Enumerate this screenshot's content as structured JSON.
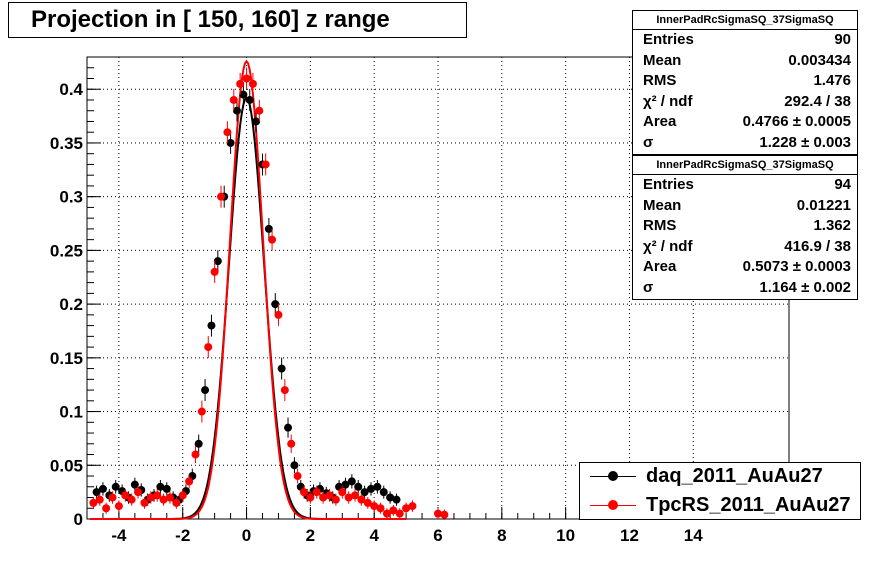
{
  "title": "Projection in [ 150, 160] z range",
  "stats": [
    {
      "header": "InnerPadRcSigmaSQ_37SigmaSQ",
      "rows": [
        {
          "label": "Entries",
          "value": "90"
        },
        {
          "label": "Mean",
          "value": "0.003434"
        },
        {
          "label": "RMS",
          "value": "1.476"
        },
        {
          "label": "χ² / ndf",
          "value": "292.4 / 38"
        },
        {
          "label": "Area",
          "value": "0.4766 ± 0.0005"
        },
        {
          "label": "σ",
          "value": "1.228 ± 0.003"
        }
      ]
    },
    {
      "header": "InnerPadRcSigmaSQ_37SigmaSQ",
      "rows": [
        {
          "label": "Entries",
          "value": "94"
        },
        {
          "label": "Mean",
          "value": "0.01221"
        },
        {
          "label": "RMS",
          "value": "1.362"
        },
        {
          "label": "χ² / ndf",
          "value": "416.9 / 38"
        },
        {
          "label": "Area",
          "value": "0.5073 ± 0.0003"
        },
        {
          "label": "σ",
          "value": "1.164 ± 0.002"
        }
      ]
    }
  ],
  "legend": [
    {
      "label": "daq_2011_AuAu27",
      "color": "#000000"
    },
    {
      "label": "TpcRS_2011_AuAu27",
      "color": "#ff0000"
    }
  ],
  "chart_data": {
    "type": "scatter",
    "title": "Projection in [ 150, 160] z range",
    "xlim": [
      -5,
      17
    ],
    "ylim": [
      0,
      0.43
    ],
    "x_ticks": [
      "-4",
      "-2",
      "0",
      "2",
      "4",
      "6",
      "8",
      "10",
      "12",
      "14"
    ],
    "y_ticks": [
      "0",
      "0.05",
      "0.1",
      "0.15",
      "0.2",
      "0.25",
      "0.3",
      "0.35",
      "0.4"
    ],
    "grid": true,
    "series": [
      {
        "name": "daq_2011_AuAu27",
        "color": "#000000",
        "x": [
          -4.7,
          -4.5,
          -4.3,
          -4.1,
          -3.9,
          -3.7,
          -3.5,
          -3.3,
          -3.1,
          -2.9,
          -2.7,
          -2.5,
          -2.3,
          -2.1,
          -1.9,
          -1.7,
          -1.5,
          -1.3,
          -1.1,
          -0.9,
          -0.7,
          -0.5,
          -0.3,
          -0.1,
          0.1,
          0.3,
          0.5,
          0.7,
          0.9,
          1.1,
          1.3,
          1.5,
          1.7,
          1.9,
          2.1,
          2.3,
          2.5,
          2.7,
          2.9,
          3.1,
          3.3,
          3.5,
          3.7,
          3.9,
          4.1,
          4.3,
          4.5,
          4.7
        ],
        "y": [
          0.025,
          0.028,
          0.022,
          0.03,
          0.026,
          0.02,
          0.032,
          0.027,
          0.018,
          0.022,
          0.03,
          0.028,
          0.02,
          0.018,
          0.026,
          0.04,
          0.07,
          0.12,
          0.18,
          0.24,
          0.3,
          0.35,
          0.38,
          0.395,
          0.39,
          0.37,
          0.33,
          0.27,
          0.2,
          0.14,
          0.085,
          0.05,
          0.03,
          0.022,
          0.026,
          0.028,
          0.024,
          0.02,
          0.03,
          0.032,
          0.035,
          0.03,
          0.025,
          0.028,
          0.03,
          0.025,
          0.02,
          0.018
        ]
      },
      {
        "name": "TpcRS_2011_AuAu27",
        "color": "#ff0000",
        "x": [
          -4.8,
          -4.6,
          -4.4,
          -4.2,
          -4.0,
          -3.8,
          -3.6,
          -3.4,
          -3.2,
          -3.0,
          -2.8,
          -2.6,
          -2.4,
          -2.2,
          -2.0,
          -1.8,
          -1.6,
          -1.4,
          -1.2,
          -1.0,
          -0.8,
          -0.6,
          -0.4,
          -0.2,
          0.0,
          0.2,
          0.4,
          0.6,
          0.8,
          1.0,
          1.2,
          1.4,
          1.6,
          1.8,
          2.0,
          2.2,
          2.4,
          2.6,
          2.8,
          3.0,
          3.2,
          3.4,
          3.6,
          3.8,
          4.0,
          4.2,
          4.4,
          4.6,
          4.8,
          5.0,
          5.2,
          6.0,
          6.2
        ],
        "y": [
          0.015,
          0.018,
          0.01,
          0.02,
          0.012,
          0.022,
          0.018,
          0.025,
          0.015,
          0.02,
          0.022,
          0.018,
          0.02,
          0.015,
          0.022,
          0.035,
          0.06,
          0.1,
          0.16,
          0.23,
          0.3,
          0.36,
          0.39,
          0.405,
          0.41,
          0.405,
          0.38,
          0.33,
          0.26,
          0.19,
          0.12,
          0.07,
          0.04,
          0.025,
          0.02,
          0.025,
          0.02,
          0.022,
          0.018,
          0.025,
          0.02,
          0.022,
          0.018,
          0.015,
          0.012,
          0.01,
          0.005,
          0.008,
          0.005,
          0.01,
          0.012,
          0.005,
          0.004
        ]
      }
    ],
    "fits": [
      {
        "series": "daq_2011_AuAu27",
        "color": "#000000",
        "amplitude": 0.392,
        "sigma": 0.55
      },
      {
        "series": "TpcRS_2011_AuAu27",
        "color": "#ff0000",
        "amplitude": 0.426,
        "sigma": 0.52
      }
    ]
  }
}
